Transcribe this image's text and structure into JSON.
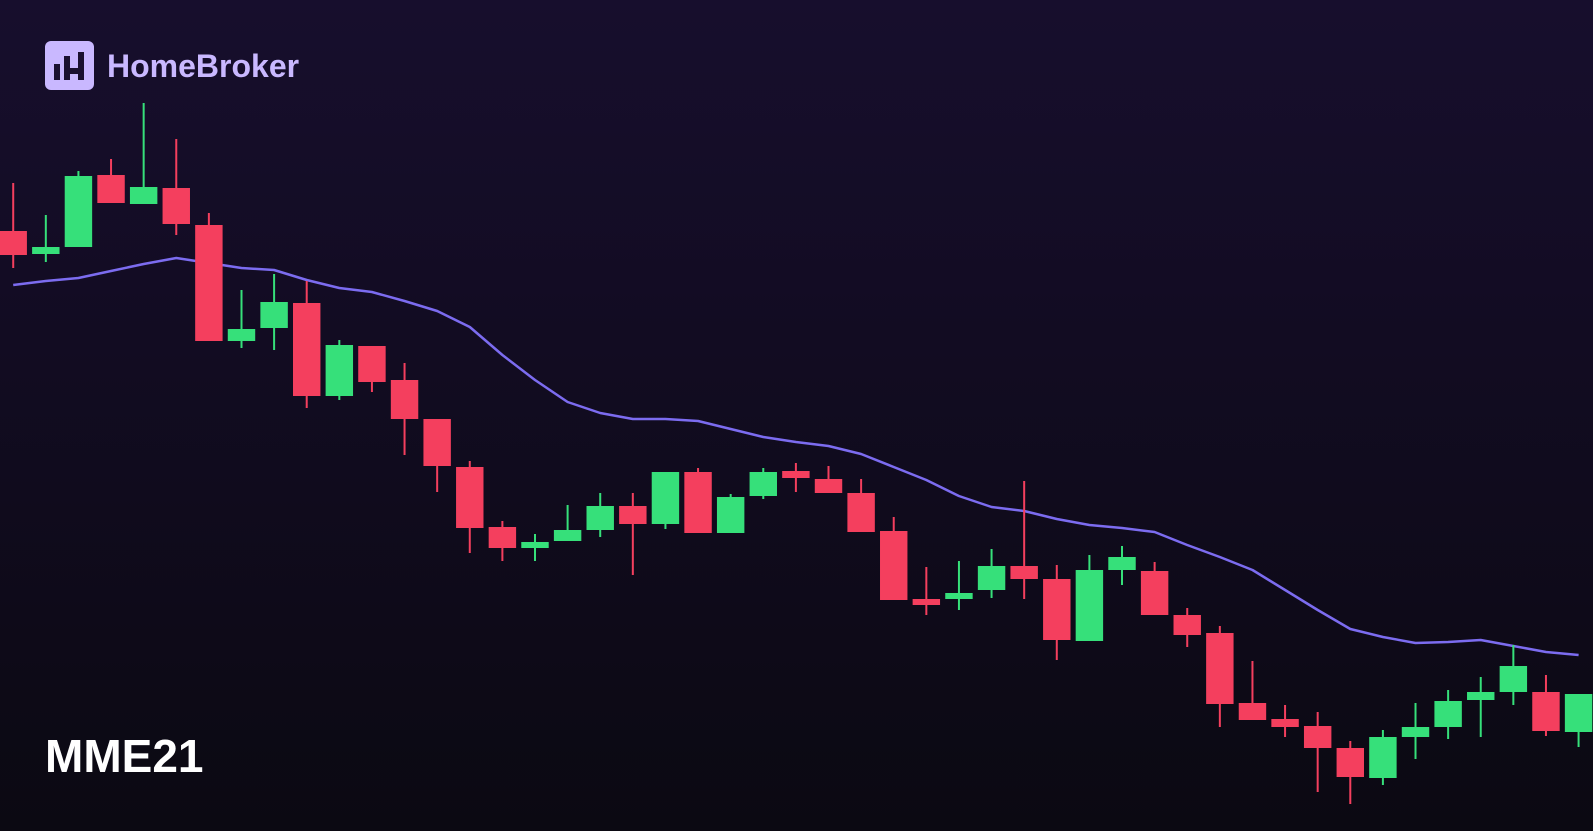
{
  "brand": "HomeBroker",
  "chart_data": {
    "type": "candlestick",
    "title": "MME21",
    "categories": [
      null,
      null,
      null,
      null,
      null,
      null,
      null,
      null,
      null,
      null,
      null,
      null,
      null,
      null,
      null,
      null,
      null,
      null,
      null,
      null,
      null,
      null,
      null,
      null,
      null,
      null,
      null,
      null,
      null,
      null,
      null,
      null,
      null,
      null,
      null,
      null,
      null,
      null,
      null,
      null,
      null,
      null,
      null,
      null,
      null,
      null,
      null,
      null,
      null
    ],
    "open": [
      60.0,
      57.7,
      58.4,
      65.6,
      62.7,
      64.3,
      60.6,
      49.0,
      50.3,
      52.8,
      43.5,
      48.5,
      45.1,
      41.2,
      36.4,
      30.4,
      28.3,
      29.0,
      30.1,
      32.5,
      30.7,
      35.9,
      29.8,
      33.5,
      36.0,
      35.2,
      33.8,
      30.0,
      23.2,
      23.2,
      24.1,
      26.5,
      25.2,
      19.0,
      26.1,
      26.0,
      21.6,
      19.8,
      12.8,
      11.2,
      10.5,
      8.3,
      5.3,
      9.4,
      10.4,
      13.1,
      13.9,
      13.9,
      9.9
    ],
    "high": [
      64.8,
      61.6,
      66.0,
      67.2,
      72.8,
      69.2,
      61.8,
      54.1,
      55.7,
      55.0,
      49.1,
      48.5,
      46.8,
      41.2,
      37.0,
      31.0,
      29.7,
      32.6,
      33.8,
      33.8,
      35.9,
      36.3,
      33.7,
      36.3,
      36.8,
      36.5,
      35.2,
      31.4,
      26.4,
      27.0,
      28.2,
      35.0,
      26.6,
      27.6,
      28.5,
      26.9,
      22.3,
      20.5,
      17.0,
      12.6,
      11.9,
      9.0,
      10.1,
      12.8,
      14.1,
      15.4,
      18.6,
      15.6,
      13.7
    ],
    "low": [
      56.3,
      56.9,
      58.4,
      62.8,
      62.7,
      59.6,
      49.0,
      48.3,
      48.1,
      42.3,
      43.1,
      43.9,
      37.6,
      33.9,
      27.8,
      27.0,
      27.0,
      29.0,
      29.4,
      25.6,
      30.2,
      29.8,
      29.8,
      33.2,
      33.9,
      33.8,
      29.9,
      23.1,
      21.6,
      22.1,
      23.3,
      23.2,
      17.1,
      19.0,
      24.6,
      21.6,
      18.4,
      10.4,
      11.1,
      9.4,
      3.9,
      2.7,
      4.6,
      7.2,
      9.2,
      9.4,
      12.6,
      9.5,
      8.4
    ],
    "close": [
      57.6,
      58.4,
      65.5,
      62.8,
      64.4,
      60.7,
      49.0,
      50.2,
      52.9,
      43.5,
      48.6,
      44.9,
      41.2,
      36.5,
      30.3,
      28.3,
      28.9,
      30.1,
      32.5,
      30.7,
      35.9,
      29.8,
      33.4,
      35.9,
      35.3,
      33.8,
      29.9,
      23.1,
      22.6,
      23.8,
      26.5,
      25.2,
      19.1,
      26.1,
      27.4,
      21.6,
      19.6,
      12.7,
      11.1,
      10.4,
      8.3,
      5.4,
      9.4,
      10.4,
      13.0,
      13.9,
      16.5,
      10.0,
      13.7
    ],
    "up_color": "#36e07a",
    "down_color": "#f43f5e",
    "ma": {
      "color": "#7c6cf0",
      "values": [
        54.6,
        55.0,
        55.3,
        56.0,
        56.7,
        57.3,
        56.8,
        56.3,
        56.1,
        55.1,
        54.3,
        53.9,
        53.0,
        52.0,
        50.4,
        47.6,
        45.1,
        42.9,
        41.8,
        41.2,
        41.2,
        41.0,
        40.2,
        39.4,
        38.9,
        38.5,
        37.7,
        36.4,
        35.1,
        33.5,
        32.4,
        32.0,
        31.2,
        30.6,
        30.3,
        29.9,
        28.6,
        27.4,
        26.1,
        24.1,
        22.1,
        20.2,
        19.4,
        18.8,
        18.9,
        19.1,
        18.5,
        17.9,
        17.6
      ]
    },
    "ylim": [
      0,
      83.1
    ]
  }
}
